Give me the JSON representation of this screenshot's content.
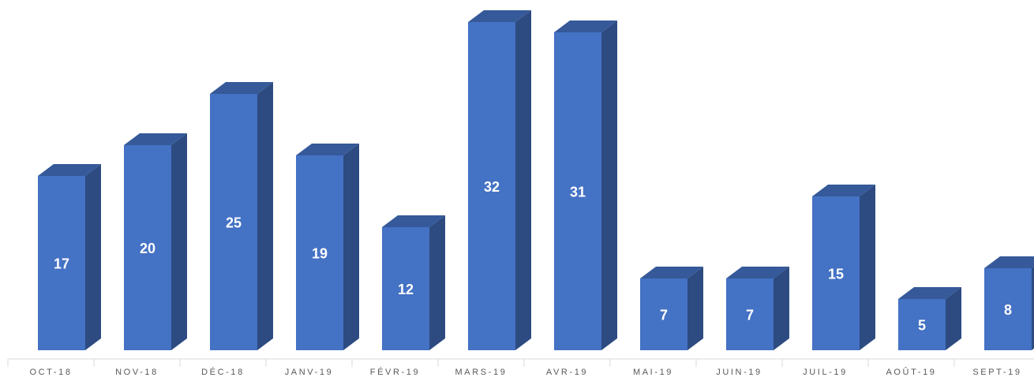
{
  "chart_data": {
    "type": "bar3d",
    "categories": [
      "OCT-18",
      "NOV-18",
      "DÉC-18",
      "JANV-19",
      "FÉVR-19",
      "MARS-19",
      "AVR-19",
      "MAI-19",
      "JUIN-19",
      "JUIL-19",
      "AOÛT-19",
      "SEPT-19"
    ],
    "values": [
      17,
      20,
      25,
      19,
      12,
      32,
      31,
      7,
      7,
      15,
      5,
      8
    ],
    "color": "#4472c4"
  }
}
